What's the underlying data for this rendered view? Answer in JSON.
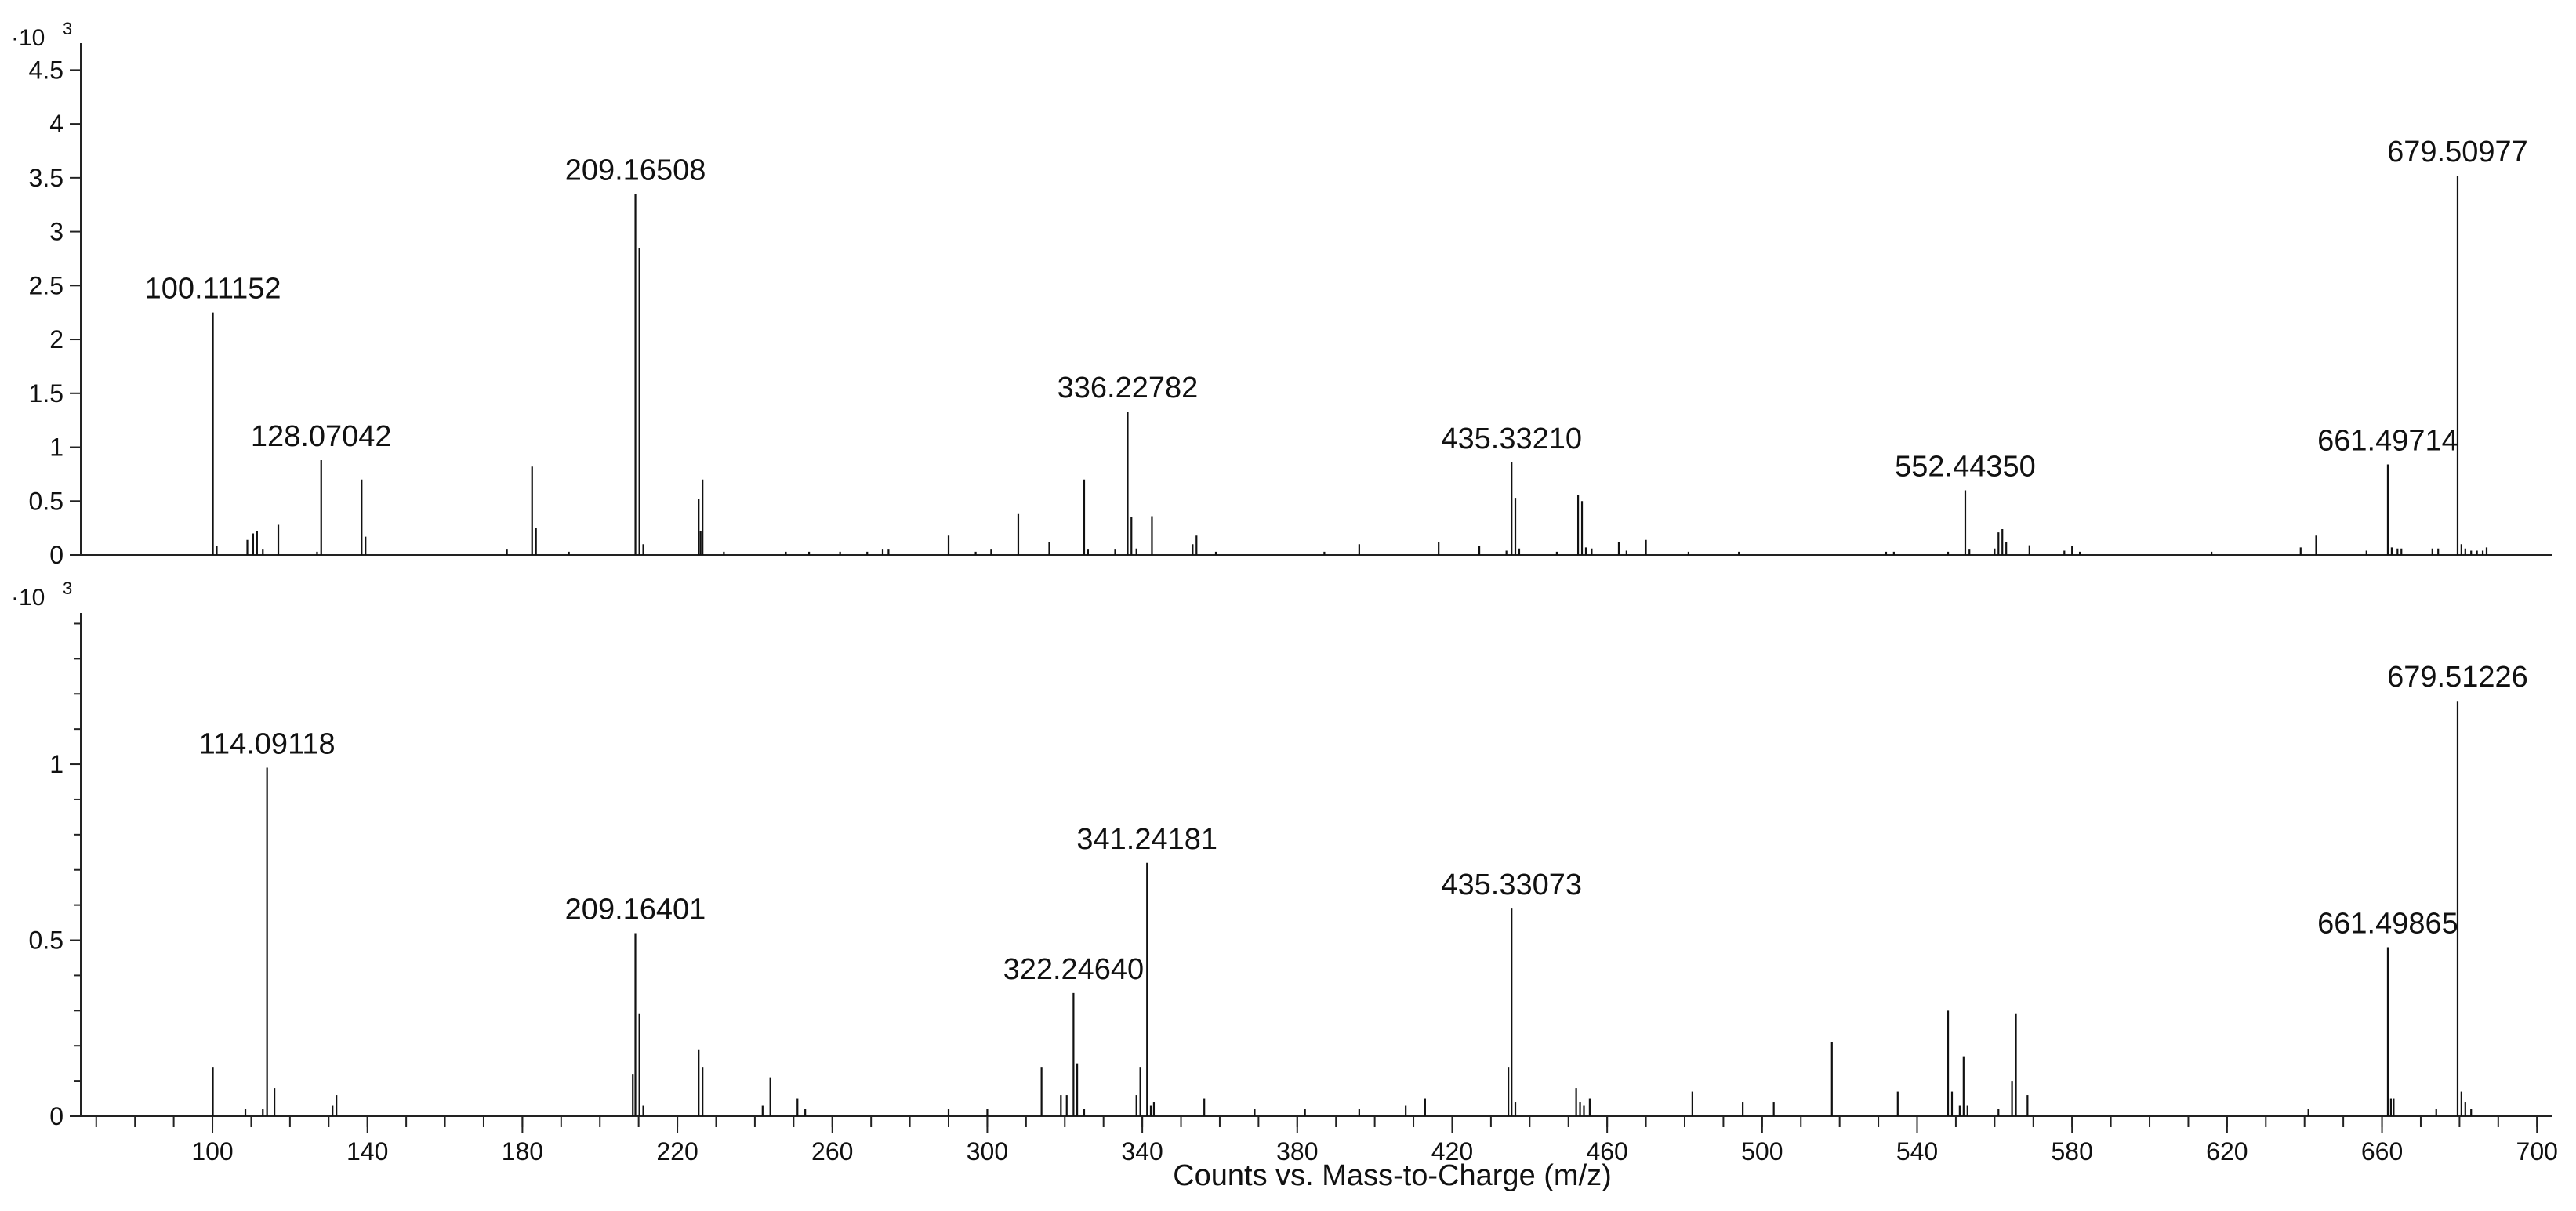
{
  "x_axis": {
    "title": "Counts vs. Mass-to-Charge (m/z)",
    "range": [
      66,
      704
    ],
    "ticks": [
      100,
      140,
      180,
      220,
      260,
      300,
      340,
      380,
      420,
      460,
      500,
      540,
      580,
      620,
      660,
      700
    ],
    "minor_step": 10
  },
  "chart_data": [
    {
      "type": "bar",
      "panel": "top",
      "scale_label": "·10",
      "scale_exp": "3",
      "ylim": [
        0,
        4.75
      ],
      "yticks": [
        0,
        0.5,
        1,
        1.5,
        2,
        2.5,
        3,
        3.5,
        4,
        4.5
      ],
      "ytick_labels": [
        "0",
        "0.5",
        "1",
        "1.5",
        "2",
        "2.5",
        "3",
        "3.5",
        "4",
        "4.5"
      ],
      "peaks": [
        {
          "mz": 100.11,
          "y": 2.25,
          "label": "100.11152"
        },
        {
          "mz": 101.1,
          "y": 0.08
        },
        {
          "mz": 109,
          "y": 0.14
        },
        {
          "mz": 110.5,
          "y": 0.2
        },
        {
          "mz": 111.5,
          "y": 0.22
        },
        {
          "mz": 113,
          "y": 0.05
        },
        {
          "mz": 117,
          "y": 0.28
        },
        {
          "mz": 128.07,
          "y": 0.88,
          "label": "128.07042"
        },
        {
          "mz": 127,
          "y": 0.03
        },
        {
          "mz": 138.5,
          "y": 0.7
        },
        {
          "mz": 139.5,
          "y": 0.17
        },
        {
          "mz": 176,
          "y": 0.05
        },
        {
          "mz": 182.5,
          "y": 0.82
        },
        {
          "mz": 183.5,
          "y": 0.25
        },
        {
          "mz": 192,
          "y": 0.03
        },
        {
          "mz": 209.17,
          "y": 3.35,
          "label": "209.16508"
        },
        {
          "mz": 210.2,
          "y": 2.85
        },
        {
          "mz": 211.2,
          "y": 0.1
        },
        {
          "mz": 225.5,
          "y": 0.52
        },
        {
          "mz": 226.5,
          "y": 0.7
        },
        {
          "mz": 226,
          "y": 0.22
        },
        {
          "mz": 232,
          "y": 0.03
        },
        {
          "mz": 248,
          "y": 0.03
        },
        {
          "mz": 254,
          "y": 0.03
        },
        {
          "mz": 262,
          "y": 0.03
        },
        {
          "mz": 269,
          "y": 0.03
        },
        {
          "mz": 273,
          "y": 0.05
        },
        {
          "mz": 274.5,
          "y": 0.05
        },
        {
          "mz": 290,
          "y": 0.18
        },
        {
          "mz": 297,
          "y": 0.03
        },
        {
          "mz": 301,
          "y": 0.05
        },
        {
          "mz": 308,
          "y": 0.38
        },
        {
          "mz": 316,
          "y": 0.12
        },
        {
          "mz": 325,
          "y": 0.7
        },
        {
          "mz": 326,
          "y": 0.05
        },
        {
          "mz": 333,
          "y": 0.05
        },
        {
          "mz": 336.23,
          "y": 1.33,
          "label": "336.22782"
        },
        {
          "mz": 337.2,
          "y": 0.35
        },
        {
          "mz": 338.5,
          "y": 0.06
        },
        {
          "mz": 342.5,
          "y": 0.36
        },
        {
          "mz": 353,
          "y": 0.1
        },
        {
          "mz": 354,
          "y": 0.18
        },
        {
          "mz": 359,
          "y": 0.03
        },
        {
          "mz": 387,
          "y": 0.03
        },
        {
          "mz": 396,
          "y": 0.1
        },
        {
          "mz": 416.5,
          "y": 0.12
        },
        {
          "mz": 427,
          "y": 0.08
        },
        {
          "mz": 434,
          "y": 0.04
        },
        {
          "mz": 435.33,
          "y": 0.86,
          "label": "435.33210"
        },
        {
          "mz": 436.3,
          "y": 0.53
        },
        {
          "mz": 437.3,
          "y": 0.06
        },
        {
          "mz": 447,
          "y": 0.03
        },
        {
          "mz": 452.5,
          "y": 0.56
        },
        {
          "mz": 453.5,
          "y": 0.5
        },
        {
          "mz": 454.5,
          "y": 0.07
        },
        {
          "mz": 456,
          "y": 0.06
        },
        {
          "mz": 463,
          "y": 0.12
        },
        {
          "mz": 465,
          "y": 0.04
        },
        {
          "mz": 470,
          "y": 0.14
        },
        {
          "mz": 481,
          "y": 0.03
        },
        {
          "mz": 494,
          "y": 0.03
        },
        {
          "mz": 532,
          "y": 0.03
        },
        {
          "mz": 534,
          "y": 0.03
        },
        {
          "mz": 548,
          "y": 0.03
        },
        {
          "mz": 552.44,
          "y": 0.6,
          "label": "552.44350"
        },
        {
          "mz": 553.5,
          "y": 0.05
        },
        {
          "mz": 560,
          "y": 0.06
        },
        {
          "mz": 561,
          "y": 0.21
        },
        {
          "mz": 562,
          "y": 0.24
        },
        {
          "mz": 563,
          "y": 0.12
        },
        {
          "mz": 569,
          "y": 0.09
        },
        {
          "mz": 578,
          "y": 0.04
        },
        {
          "mz": 580,
          "y": 0.08
        },
        {
          "mz": 582,
          "y": 0.03
        },
        {
          "mz": 616,
          "y": 0.03
        },
        {
          "mz": 639,
          "y": 0.07
        },
        {
          "mz": 643,
          "y": 0.18
        },
        {
          "mz": 656,
          "y": 0.04
        },
        {
          "mz": 661.5,
          "y": 0.84,
          "label": "661.49714"
        },
        {
          "mz": 662.5,
          "y": 0.07
        },
        {
          "mz": 664,
          "y": 0.06
        },
        {
          "mz": 665,
          "y": 0.06
        },
        {
          "mz": 673,
          "y": 0.06
        },
        {
          "mz": 674.5,
          "y": 0.06
        },
        {
          "mz": 679.51,
          "y": 3.52,
          "label": "679.50977"
        },
        {
          "mz": 680.5,
          "y": 0.1
        },
        {
          "mz": 681.5,
          "y": 0.06
        },
        {
          "mz": 683,
          "y": 0.04
        },
        {
          "mz": 684.5,
          "y": 0.04
        },
        {
          "mz": 686,
          "y": 0.04
        },
        {
          "mz": 687,
          "y": 0.07
        }
      ]
    },
    {
      "type": "bar",
      "panel": "bottom",
      "scale_label": "·10",
      "scale_exp": "3",
      "ylim": [
        0,
        1.43
      ],
      "yticks": [
        0,
        0.5,
        1
      ],
      "ytick_labels": [
        "0",
        "0.5",
        "1"
      ],
      "minor_yticks": [
        0.1,
        0.2,
        0.3,
        0.4,
        0.6,
        0.7,
        0.8,
        0.9,
        1.1,
        1.2,
        1.3,
        1.4
      ],
      "peaks": [
        {
          "mz": 100.1,
          "y": 0.14
        },
        {
          "mz": 108.5,
          "y": 0.02
        },
        {
          "mz": 113,
          "y": 0.02
        },
        {
          "mz": 114.09,
          "y": 0.99,
          "label": "114.09118"
        },
        {
          "mz": 116,
          "y": 0.08
        },
        {
          "mz": 131,
          "y": 0.03
        },
        {
          "mz": 132,
          "y": 0.06
        },
        {
          "mz": 208.5,
          "y": 0.12
        },
        {
          "mz": 209.16,
          "y": 0.52,
          "label": "209.16401"
        },
        {
          "mz": 210.2,
          "y": 0.29
        },
        {
          "mz": 211.2,
          "y": 0.03
        },
        {
          "mz": 225.5,
          "y": 0.19
        },
        {
          "mz": 226.5,
          "y": 0.14
        },
        {
          "mz": 242,
          "y": 0.03
        },
        {
          "mz": 244,
          "y": 0.11
        },
        {
          "mz": 251,
          "y": 0.05
        },
        {
          "mz": 253,
          "y": 0.02
        },
        {
          "mz": 290,
          "y": 0.02
        },
        {
          "mz": 300,
          "y": 0.02
        },
        {
          "mz": 314,
          "y": 0.14
        },
        {
          "mz": 319,
          "y": 0.06
        },
        {
          "mz": 320.5,
          "y": 0.06
        },
        {
          "mz": 322.25,
          "y": 0.35,
          "label": "322.24640"
        },
        {
          "mz": 323.2,
          "y": 0.15
        },
        {
          "mz": 325,
          "y": 0.02
        },
        {
          "mz": 338.5,
          "y": 0.06
        },
        {
          "mz": 339.5,
          "y": 0.14
        },
        {
          "mz": 341.24,
          "y": 0.72,
          "label": "341.24181"
        },
        {
          "mz": 342.2,
          "y": 0.03
        },
        {
          "mz": 343,
          "y": 0.04
        },
        {
          "mz": 356,
          "y": 0.05
        },
        {
          "mz": 369,
          "y": 0.02
        },
        {
          "mz": 382,
          "y": 0.02
        },
        {
          "mz": 396,
          "y": 0.02
        },
        {
          "mz": 408,
          "y": 0.03
        },
        {
          "mz": 413,
          "y": 0.05
        },
        {
          "mz": 434.5,
          "y": 0.14
        },
        {
          "mz": 435.33,
          "y": 0.59,
          "label": "435.33073"
        },
        {
          "mz": 436.3,
          "y": 0.04
        },
        {
          "mz": 452,
          "y": 0.08
        },
        {
          "mz": 453,
          "y": 0.04
        },
        {
          "mz": 454,
          "y": 0.03
        },
        {
          "mz": 455.5,
          "y": 0.05
        },
        {
          "mz": 482,
          "y": 0.07
        },
        {
          "mz": 495,
          "y": 0.04
        },
        {
          "mz": 503,
          "y": 0.04
        },
        {
          "mz": 518,
          "y": 0.21
        },
        {
          "mz": 535,
          "y": 0.07
        },
        {
          "mz": 548,
          "y": 0.3
        },
        {
          "mz": 549,
          "y": 0.07
        },
        {
          "mz": 551,
          "y": 0.03
        },
        {
          "mz": 552,
          "y": 0.17
        },
        {
          "mz": 553,
          "y": 0.03
        },
        {
          "mz": 561,
          "y": 0.02
        },
        {
          "mz": 564.5,
          "y": 0.1
        },
        {
          "mz": 565.5,
          "y": 0.29
        },
        {
          "mz": 568.5,
          "y": 0.06
        },
        {
          "mz": 641,
          "y": 0.02
        },
        {
          "mz": 661.5,
          "y": 0.48,
          "label": "661.49865"
        },
        {
          "mz": 662.3,
          "y": 0.05
        },
        {
          "mz": 663,
          "y": 0.05
        },
        {
          "mz": 674,
          "y": 0.02
        },
        {
          "mz": 679.51,
          "y": 1.18,
          "label": "679.51226"
        },
        {
          "mz": 680.5,
          "y": 0.07
        },
        {
          "mz": 681.5,
          "y": 0.04
        },
        {
          "mz": 683,
          "y": 0.02
        }
      ]
    }
  ]
}
